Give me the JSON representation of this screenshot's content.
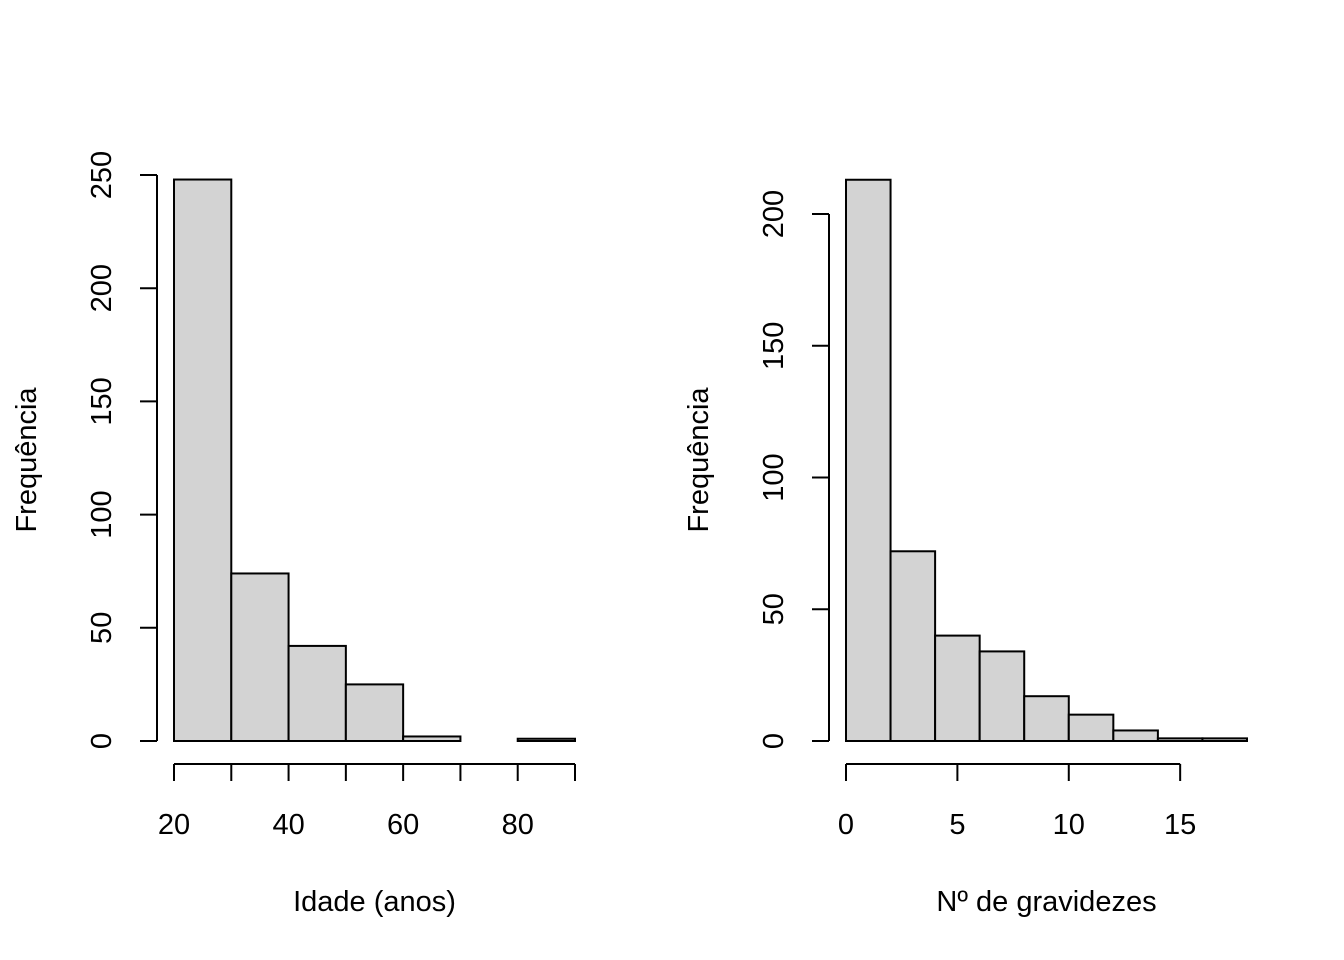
{
  "chart_data": [
    {
      "type": "bar",
      "title": "",
      "xlabel": "Idade (anos)",
      "ylabel": "Frequência",
      "bin_edges": [
        20,
        30,
        40,
        50,
        60,
        70,
        80,
        90
      ],
      "values": [
        248,
        74,
        42,
        25,
        2,
        0,
        1
      ],
      "xlim": [
        20,
        90
      ],
      "ylim": [
        0,
        250
      ],
      "xticks": [
        20,
        40,
        60,
        80
      ],
      "yticks": [
        0,
        50,
        100,
        150,
        200,
        250
      ],
      "bar_color": "#d3d3d3",
      "grid": false,
      "legend": "none"
    },
    {
      "type": "bar",
      "title": "",
      "xlabel": "Nº de gravidezes",
      "ylabel": "Frequência",
      "bin_edges": [
        0,
        2,
        4,
        6,
        8,
        10,
        12,
        14,
        16,
        18
      ],
      "values": [
        213,
        72,
        40,
        34,
        17,
        10,
        4,
        1,
        1
      ],
      "xlim": [
        0,
        18
      ],
      "ylim": [
        0,
        200
      ],
      "xticks": [
        0,
        5,
        10,
        15
      ],
      "yticks": [
        0,
        50,
        100,
        150,
        200
      ],
      "bar_color": "#d3d3d3",
      "grid": false,
      "legend": "none"
    }
  ]
}
